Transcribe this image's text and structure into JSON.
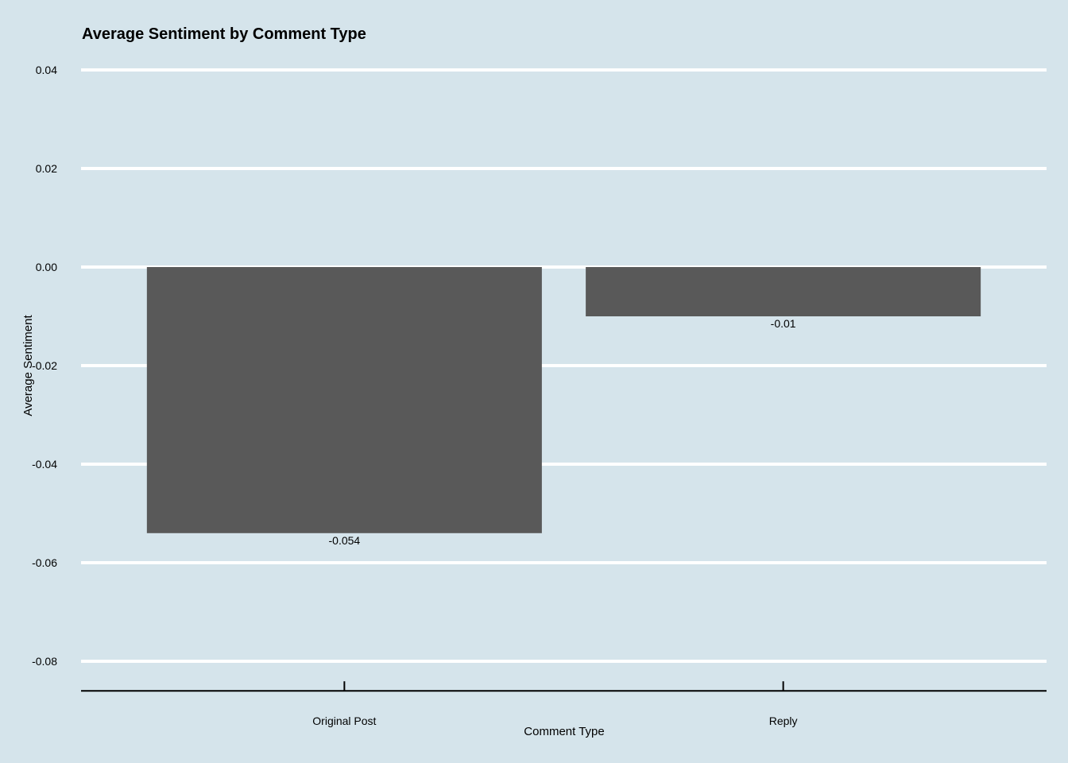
{
  "chart_data": {
    "type": "bar",
    "title": "Average Sentiment by Comment Type",
    "xlabel": "Comment Type",
    "ylabel": "Average Sentiment",
    "categories": [
      "Original Post",
      "Reply"
    ],
    "values": [
      -0.054,
      -0.01
    ],
    "data_labels": [
      "-0.054",
      "-0.01"
    ],
    "y_ticks": [
      0.04,
      0.02,
      0.0,
      -0.02,
      -0.04,
      -0.06,
      -0.08
    ],
    "y_tick_labels": [
      "0.04",
      "0.02",
      "0.00",
      "-0.02",
      "-0.04",
      "-0.06",
      "-0.08"
    ],
    "ylim": [
      -0.086,
      0.04
    ],
    "grid": true,
    "legend": "none",
    "colors": {
      "background": "#d5e4eb",
      "bar": "#595959",
      "grid": "#ffffff",
      "axis": "#000000",
      "text": "#000000"
    }
  }
}
